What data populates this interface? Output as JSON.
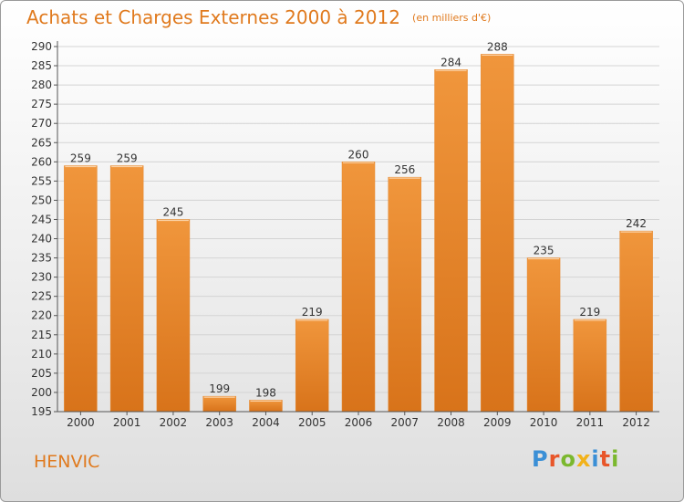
{
  "title": "Achats et Charges Externes 2000 à 2012",
  "unit_note": "(en milliers d'€)",
  "commune": "HENVIC",
  "logo": {
    "letters": [
      "P",
      "r",
      "o",
      "x",
      "i",
      "t",
      "i"
    ],
    "colors": [
      "#3a8fd6",
      "#e8562a",
      "#7bb82e",
      "#f2b21a",
      "#3a8fd6",
      "#e8562a",
      "#7bb82e"
    ]
  },
  "colors": {
    "bar": "#f0963c",
    "bar_dark": "#d8731a",
    "title": "#e07a1e",
    "grid": "#d4d4d4"
  },
  "chart_data": {
    "type": "bar",
    "title": "Achats et Charges Externes 2000 à 2012",
    "categories": [
      "2000",
      "2001",
      "2002",
      "2003",
      "2004",
      "2005",
      "2006",
      "2007",
      "2008",
      "2009",
      "2010",
      "2011",
      "2012"
    ],
    "values": [
      259,
      259,
      245,
      199,
      198,
      219,
      260,
      256,
      284,
      288,
      235,
      219,
      242
    ],
    "ylim": [
      195,
      290
    ],
    "yticks": [
      195,
      200,
      205,
      210,
      215,
      220,
      225,
      230,
      235,
      240,
      245,
      250,
      255,
      260,
      265,
      270,
      275,
      280,
      285,
      290
    ],
    "xlabel": "",
    "ylabel": "",
    "grid": true
  }
}
